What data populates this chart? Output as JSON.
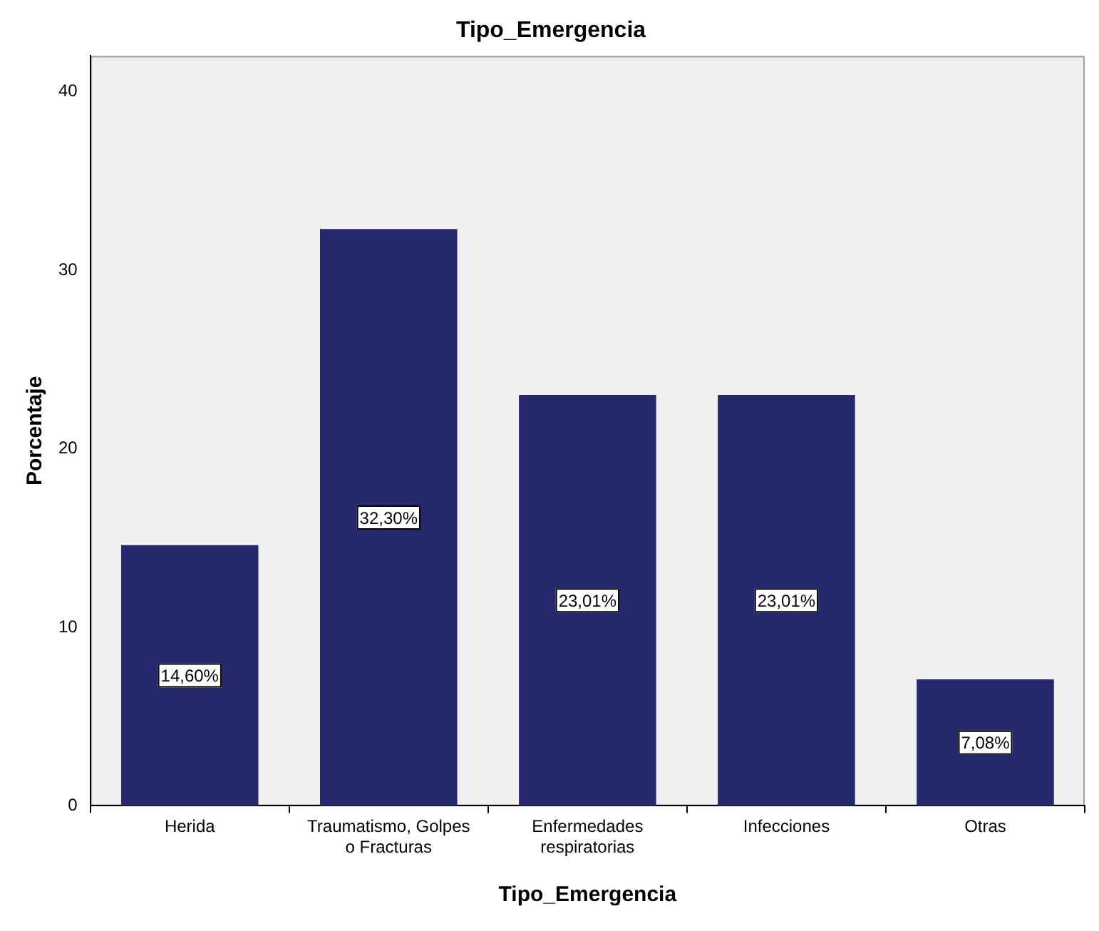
{
  "chart_data": {
    "type": "bar",
    "title": "Tipo_Emergencia",
    "xlabel": "Tipo_Emergencia",
    "ylabel": "Porcentaje",
    "categories": [
      "Herida",
      "Traumatismo, Golpes o Fracturas",
      "Enfermedades respiratorias",
      "Infecciones",
      "Otras"
    ],
    "values": [
      14.6,
      32.3,
      23.01,
      23.01,
      7.08
    ],
    "value_labels": [
      "14,60%",
      "32,30%",
      "23,01%",
      "23,01%",
      "7,08%"
    ],
    "color": "#26286e",
    "ylim": [
      0,
      42
    ],
    "yticks": [
      0,
      10,
      20,
      30,
      40
    ],
    "grid": false,
    "legend": false
  }
}
